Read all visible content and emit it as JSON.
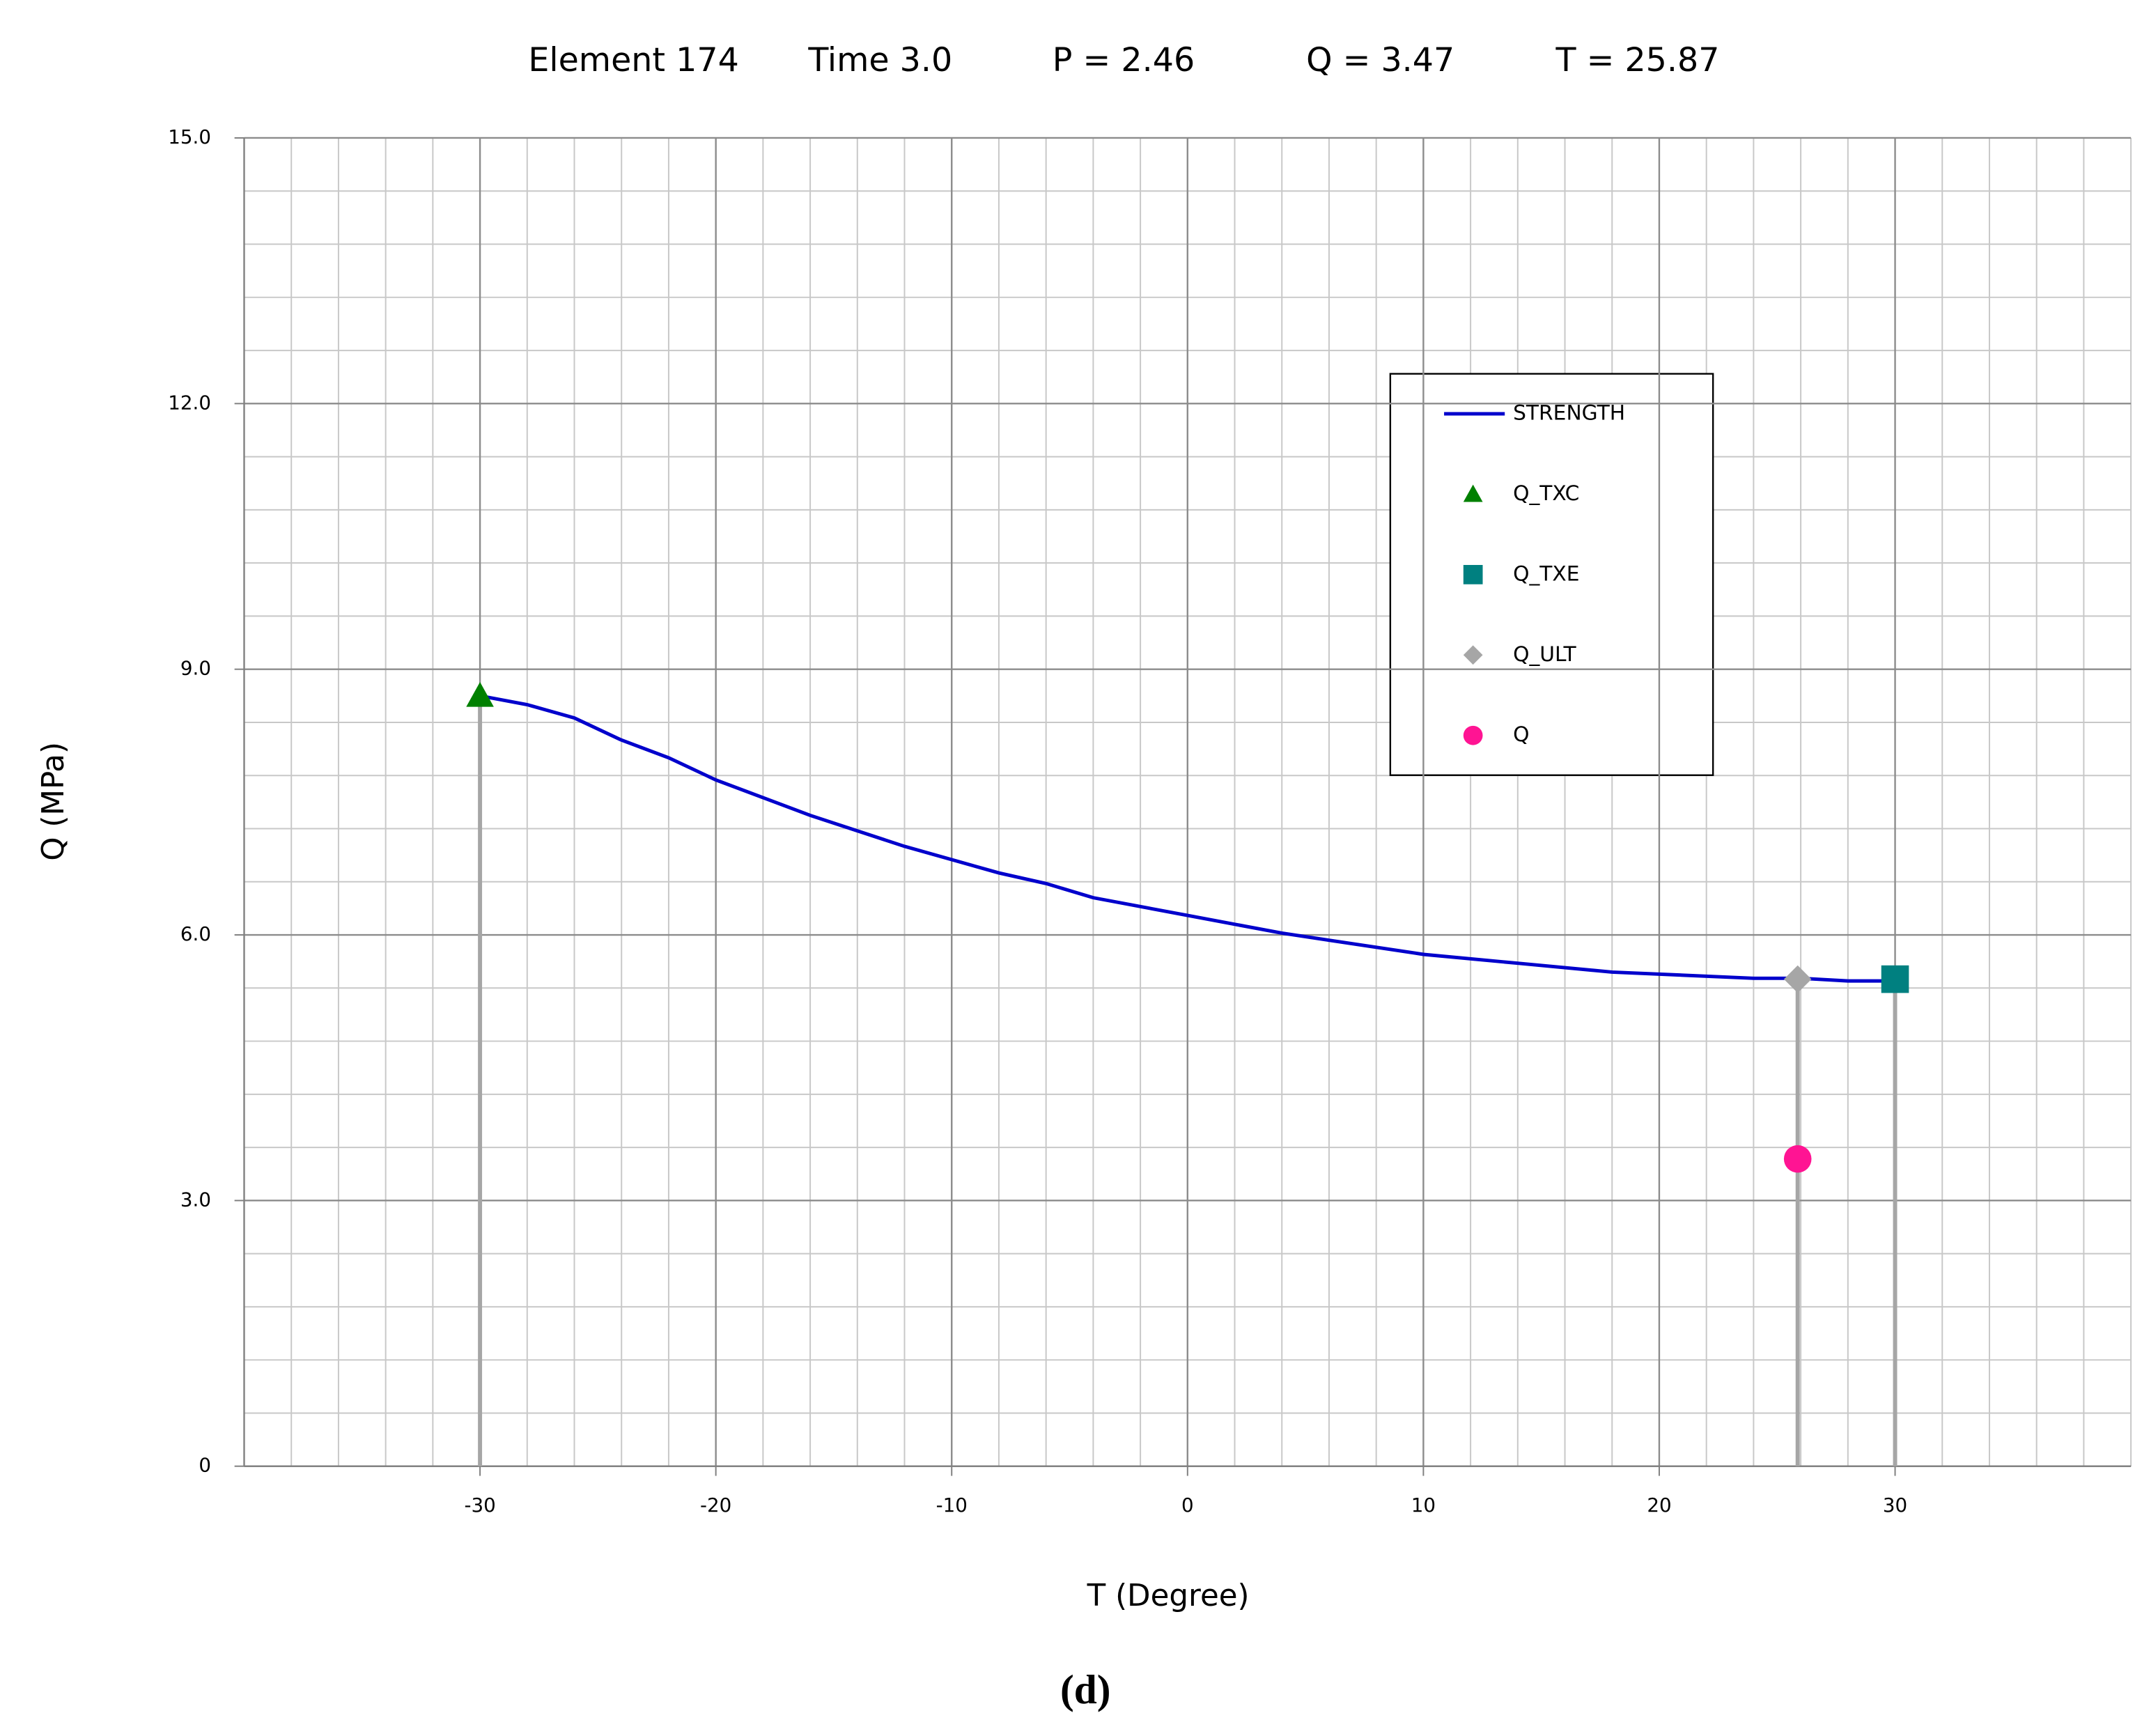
{
  "chart_data": {
    "type": "line",
    "title_parts": [
      "Element  174",
      "Time  3.0",
      "P = 2.46",
      "Q =  3.47",
      "T =  25.87"
    ],
    "x_label": "T (Degree)",
    "y_label": "Q  (MPa)",
    "caption": "(d)",
    "xlim": [
      -40,
      40
    ],
    "xticks": [
      -30,
      -20,
      -10,
      0,
      10,
      20,
      30
    ],
    "ylim": [
      0,
      15
    ],
    "yticks": [
      0,
      {
        "value": 3,
        "label": "3.0"
      },
      {
        "value": 6,
        "label": "6.0"
      },
      {
        "value": 9,
        "label": "9.0"
      },
      {
        "value": 12,
        "label": "12.0"
      },
      {
        "value": 15,
        "label": "15.0"
      }
    ],
    "grid": true,
    "legend": "upper right",
    "series": [
      {
        "name": "STRENGTH",
        "color": "#0000cc",
        "marker": "none",
        "x": [
          -30,
          -28,
          -26,
          -24,
          -22,
          -20,
          -16,
          -12,
          -8,
          -6,
          -4,
          0,
          4,
          10,
          14,
          18,
          24,
          26,
          28,
          30
        ],
        "values": [
          8.7,
          8.6,
          8.45,
          8.2,
          8.0,
          7.75,
          7.35,
          7.0,
          6.7,
          6.58,
          6.42,
          6.22,
          6.02,
          5.78,
          5.68,
          5.58,
          5.51,
          5.51,
          5.48,
          5.48
        ]
      },
      {
        "name": "Q_TXC",
        "color": "#008000",
        "marker": "triangle",
        "drop_line": true,
        "x": [
          -30
        ],
        "values": [
          8.7
        ]
      },
      {
        "name": "Q_TXE",
        "color": "#008080",
        "marker": "square",
        "drop_line": true,
        "x": [
          30
        ],
        "values": [
          5.5
        ]
      },
      {
        "name": "Q_ULT",
        "color": "#a6a6a6",
        "marker": "diamond",
        "drop_line": true,
        "x": [
          25.87
        ],
        "values": [
          5.5
        ]
      },
      {
        "name": "Q",
        "color": "#ff1493",
        "marker": "circle",
        "drop_line": false,
        "x": [
          25.87
        ],
        "values": [
          3.47
        ]
      }
    ]
  }
}
